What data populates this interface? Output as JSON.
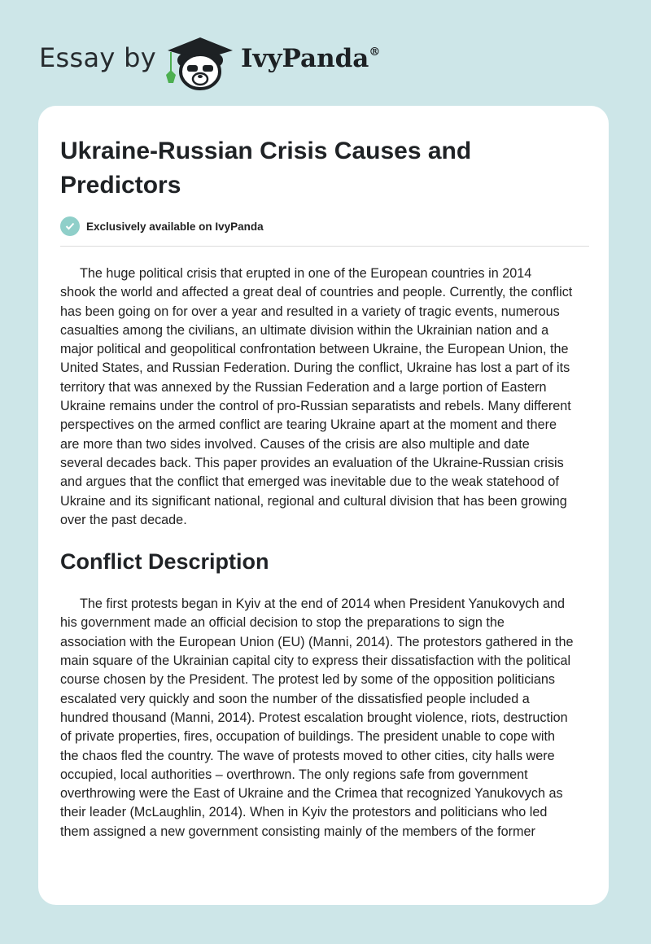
{
  "header": {
    "prefix": "Essay by",
    "brand": "IvyPanda",
    "registered": "®",
    "logo_icon": "panda-graduation-cap-icon"
  },
  "colors": {
    "background": "#cde6e8",
    "card": "#ffffff",
    "badge": "#8fcfc9",
    "ivy_leaf": "#4caf50"
  },
  "article": {
    "title": "Ukraine-Russian Crisis Causes and Predictors",
    "badge": "Exclusively available on IvyPanda",
    "paragraph_1": [
      "The huge political crisis that erupted in one of the European countries in 2014",
      "shook the world and affected a great deal of countries and people. Currently, the conflict",
      "has been going on for over a year and resulted in a variety of tragic events, numerous",
      "casualties among the civilians, an ultimate division within the Ukrainian nation and a",
      "major political and geopolitical confrontation between Ukraine, the European Union, the",
      "United States, and Russian Federation. During the conflict, Ukraine has lost a part of its",
      "territory that was annexed by the Russian Federation and a large portion of Eastern",
      "Ukraine remains under the control of pro-Russian separatists and rebels. Many different",
      "perspectives on the armed conflict are tearing Ukraine apart at the moment and there",
      "are more than two sides involved. Causes of the crisis are also multiple and date",
      "several decades back. This paper provides an evaluation of the Ukraine-Russian crisis",
      "and argues that the conflict that emerged was inevitable due to the weak statehood of",
      "Ukraine and its significant national, regional and cultural division that has been growing",
      "over the past decade."
    ],
    "section_heading": "Conflict Description",
    "paragraph_2": [
      "The first protests began in Kyiv at the end of 2014 when President Yanukovych and",
      "his government made an official decision to stop the preparations to sign the",
      "association with the European Union (EU) (Manni, 2014). The protestors gathered in the",
      "main square of the Ukrainian capital city to express their dissatisfaction with the political",
      "course chosen by the President. The protest led by some of the opposition politicians",
      "escalated very quickly and soon the number of the dissatisfied people included a",
      "hundred thousand (Manni, 2014). Protest escalation brought violence, riots, destruction",
      "of private properties, fires, occupation of buildings. The president unable to cope with",
      "the chaos fled the country. The wave of protests moved to other cities, city halls were",
      "occupied, local authorities – overthrown. The only regions safe from government",
      "overthrowing were the East of Ukraine and the Crimea that recognized Yanukovych as",
      "their leader (McLaughlin, 2014). When in Kyiv the protestors and politicians who led",
      "them assigned a new government consisting mainly of the members of the former"
    ]
  }
}
